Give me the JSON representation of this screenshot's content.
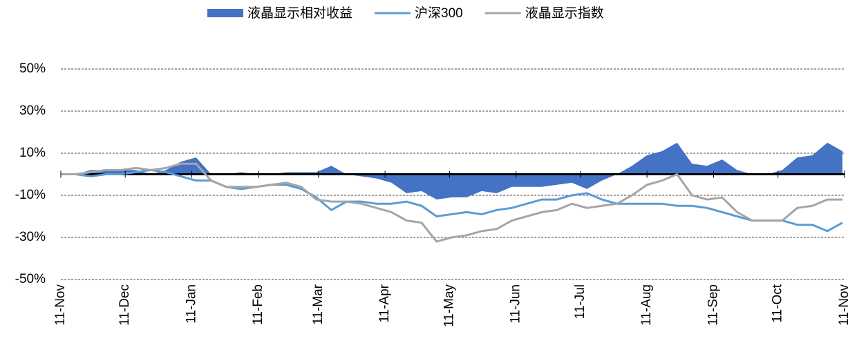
{
  "chart_data": {
    "type": "line",
    "xlim": [
      0,
      365
    ],
    "xticks": [
      {
        "value": 0,
        "label": "11-Nov"
      },
      {
        "value": 30,
        "label": "11-Dec"
      },
      {
        "value": 61,
        "label": "11-Jan"
      },
      {
        "value": 92,
        "label": "11-Feb"
      },
      {
        "value": 120,
        "label": "11-Mar"
      },
      {
        "value": 151,
        "label": "11-Apr"
      },
      {
        "value": 181,
        "label": "11-May"
      },
      {
        "value": 212,
        "label": "11-Jun"
      },
      {
        "value": 242,
        "label": "11-Jul"
      },
      {
        "value": 273,
        "label": "11-Aug"
      },
      {
        "value": 304,
        "label": "11-Sep"
      },
      {
        "value": 334,
        "label": "11-Oct"
      },
      {
        "value": 365,
        "label": "11-Nov"
      }
    ],
    "ylim": [
      -50,
      50
    ],
    "yticks": [
      {
        "value": -50,
        "label": "-50%"
      },
      {
        "value": -30,
        "label": "-30%"
      },
      {
        "value": -10,
        "label": "-10%"
      },
      {
        "value": 10,
        "label": "10%"
      },
      {
        "value": 30,
        "label": "30%"
      },
      {
        "value": 50,
        "label": "50%"
      }
    ],
    "grid": true,
    "legend": "top",
    "x": [
      0,
      7,
      14,
      21,
      28,
      35,
      42,
      49,
      56,
      63,
      70,
      77,
      84,
      91,
      98,
      105,
      112,
      119,
      126,
      133,
      140,
      147,
      154,
      161,
      168,
      175,
      182,
      189,
      196,
      203,
      210,
      217,
      224,
      231,
      238,
      245,
      252,
      259,
      266,
      273,
      280,
      287,
      294,
      301,
      308,
      315,
      322,
      329,
      336,
      343,
      350,
      357,
      364
    ],
    "series": [
      {
        "name": "液晶显示相对收益",
        "type": "area",
        "color": "#4472c4",
        "values": [
          0,
          0,
          2,
          2,
          2,
          2,
          0,
          2,
          6,
          8,
          0,
          0,
          1,
          0,
          0,
          1,
          1,
          1,
          4,
          0,
          -1,
          -2,
          -4,
          -9,
          -8,
          -12,
          -11,
          -11,
          -8,
          -9,
          -6,
          -6,
          -6,
          -5,
          -4,
          -7,
          -3,
          0,
          4,
          9,
          11,
          15,
          5,
          4,
          7,
          2,
          0,
          0,
          2,
          8,
          9,
          15,
          11
        ]
      },
      {
        "name": "沪深300",
        "type": "line",
        "color": "#5b9bd5",
        "values": [
          0,
          0,
          -1,
          0,
          0,
          1,
          2,
          1,
          -1,
          -3,
          -3,
          -6,
          -7,
          -6,
          -5,
          -5,
          -7,
          -11,
          -17,
          -13,
          -13,
          -14,
          -14,
          -13,
          -15,
          -20,
          -19,
          -18,
          -19,
          -17,
          -16,
          -14,
          -12,
          -12,
          -10,
          -9,
          -12,
          -14,
          -14,
          -14,
          -14,
          -15,
          -15,
          -16,
          -18,
          -20,
          -22,
          -22,
          -22,
          -24,
          -24,
          -27,
          -23
        ]
      },
      {
        "name": "液晶显示指数",
        "type": "line",
        "color": "#a5a5a5",
        "values": [
          0,
          0,
          1,
          2,
          2,
          3,
          2,
          3,
          5,
          5,
          -3,
          -6,
          -6,
          -6,
          -5,
          -4,
          -6,
          -12,
          -13,
          -13,
          -14,
          -16,
          -18,
          -22,
          -23,
          -32,
          -30,
          -29,
          -27,
          -26,
          -22,
          -20,
          -18,
          -17,
          -14,
          -16,
          -15,
          -14,
          -10,
          -5,
          -3,
          0,
          -10,
          -12,
          -11,
          -18,
          -22,
          -22,
          -22,
          -16,
          -15,
          -12,
          -12
        ]
      }
    ]
  }
}
